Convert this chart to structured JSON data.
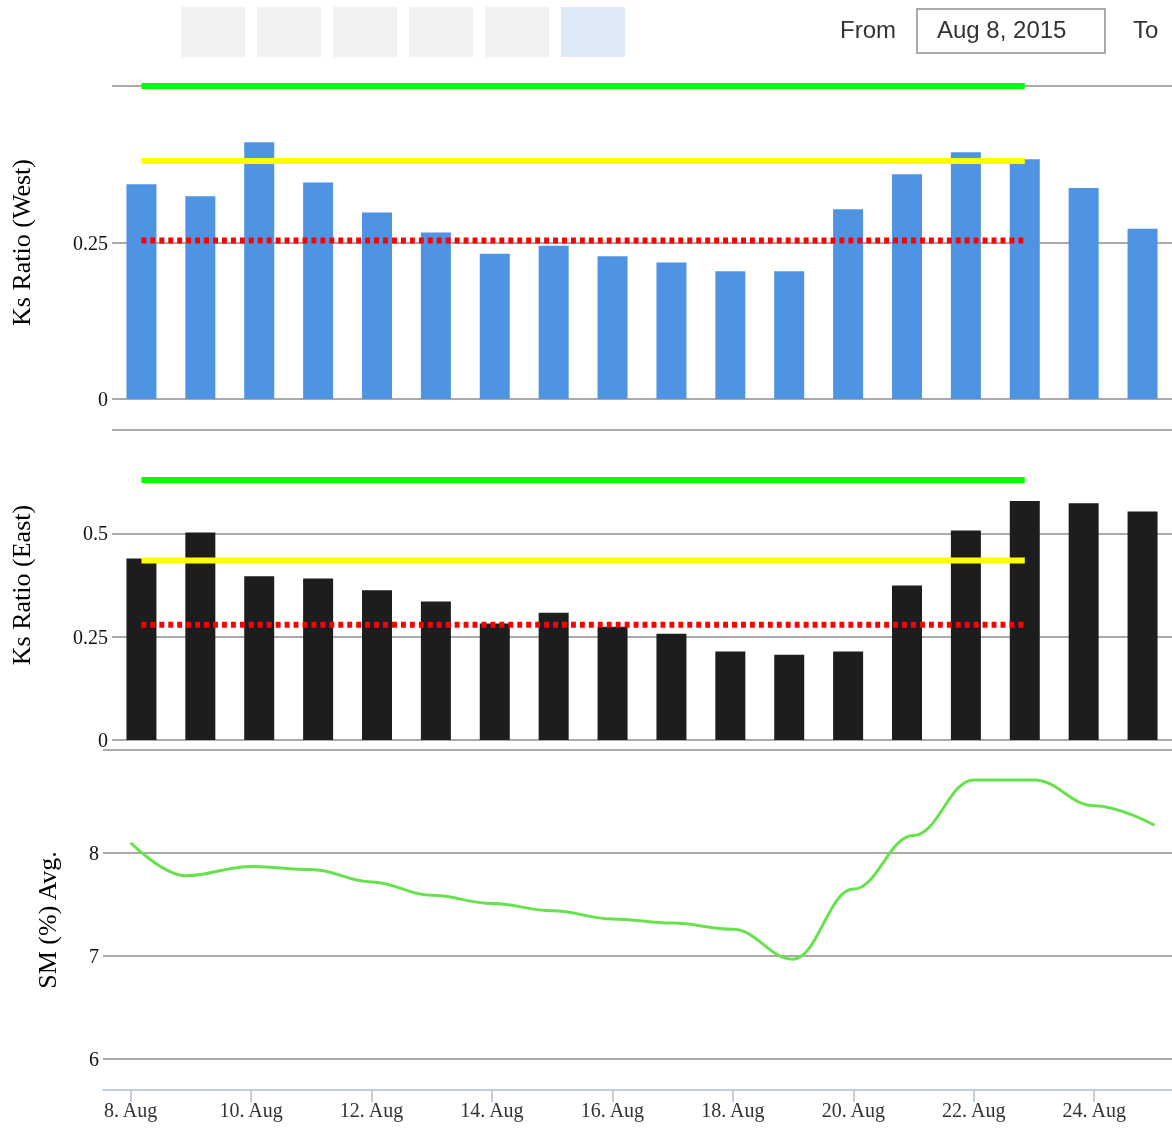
{
  "chart_data": [
    {
      "type": "other",
      "annotations": [
        "From",
        "Aug 8, 2015",
        "To"
      ]
    },
    {
      "type": "bar",
      "ylabel": "Ks Ratio (West)",
      "categories": [
        null,
        null,
        null,
        null,
        null,
        null,
        null,
        null,
        null,
        null,
        null,
        null,
        null,
        null,
        null,
        null,
        null,
        null
      ],
      "ylim": [
        0,
        0.5
      ],
      "yticks": [
        0,
        0.25,
        {
          "value": 0.5,
          "label": null
        }
      ],
      "grid": "y",
      "tick_labels": "y",
      "marker": "none",
      "series": [
        {
          "color": "#4e94e3",
          "values": [
            0.343,
            0.324,
            0.41,
            0.346,
            0.298,
            0.266,
            0.232,
            0.245,
            0.228,
            0.218,
            0.204,
            0.204,
            0.303,
            0.359,
            0.394,
            0.383,
            0.337,
            0.272
          ]
        },
        {
          "type": "line",
          "color": "#00ff00",
          "values": [
            0.5,
            0.5,
            0.5,
            0.5,
            0.5,
            0.5,
            0.5,
            0.5,
            0.5,
            0.5,
            0.5,
            0.5,
            0.5,
            0.5,
            0.5,
            0.5,
            null,
            null
          ],
          "line_style": "solid"
        },
        {
          "type": "line",
          "color": "#ffff00",
          "values": [
            0.38,
            0.38,
            0.38,
            0.38,
            0.38,
            0.38,
            0.38,
            0.38,
            0.38,
            0.38,
            0.38,
            0.38,
            0.38,
            0.38,
            0.38,
            0.38,
            null,
            null
          ],
          "line_style": "solid"
        },
        {
          "type": "line",
          "color": "#ff0000",
          "values": [
            0.253,
            0.253,
            0.253,
            0.253,
            0.253,
            0.253,
            0.253,
            0.253,
            0.253,
            0.253,
            0.253,
            0.253,
            0.253,
            0.253,
            0.253,
            0.253,
            null,
            null
          ],
          "line_style": "dotted"
        }
      ]
    },
    {
      "type": "bar",
      "ylabel": "Ks Ratio (East)",
      "categories": [
        null,
        null,
        null,
        null,
        null,
        null,
        null,
        null,
        null,
        null,
        null,
        null,
        null,
        null,
        null,
        null,
        null,
        null
      ],
      "ylim": [
        0,
        0.75
      ],
      "yticks": [
        0,
        0.25,
        0.5,
        {
          "value": 0.75,
          "label": null
        }
      ],
      "grid": "y",
      "tick_labels": "y",
      "marker": "none",
      "series": [
        {
          "color": "#1d1d1f",
          "values": [
            0.439,
            0.502,
            0.396,
            0.391,
            0.362,
            0.335,
            0.282,
            0.308,
            0.274,
            0.257,
            0.214,
            0.206,
            0.214,
            0.374,
            0.507,
            0.578,
            0.573,
            0.553
          ]
        },
        {
          "type": "line",
          "color": "#00ff00",
          "values": [
            0.629,
            0.629,
            0.629,
            0.629,
            0.629,
            0.629,
            0.629,
            0.629,
            0.629,
            0.629,
            0.629,
            0.629,
            0.629,
            0.629,
            0.629,
            0.629,
            null,
            null
          ],
          "line_style": "solid"
        },
        {
          "type": "line",
          "color": "#ffff00",
          "values": [
            0.434,
            0.434,
            0.434,
            0.434,
            0.434,
            0.434,
            0.434,
            0.434,
            0.434,
            0.434,
            0.434,
            0.434,
            0.434,
            0.434,
            0.434,
            0.434,
            null,
            null
          ],
          "line_style": "solid"
        },
        {
          "type": "line",
          "color": "#ff0000",
          "values": [
            0.279,
            0.279,
            0.279,
            0.279,
            0.279,
            0.279,
            0.279,
            0.279,
            0.279,
            0.279,
            0.279,
            0.279,
            0.279,
            0.279,
            0.279,
            0.279,
            null,
            null
          ],
          "line_style": "dotted"
        }
      ]
    },
    {
      "type": "line",
      "ylabel": "SM (%) Avg.",
      "x": [
        "2015-08-08",
        "2015-08-08T22:00",
        "2015-08-10",
        "2015-08-11",
        "2015-08-12",
        "2015-08-13",
        "2015-08-14",
        "2015-08-15",
        "2015-08-16",
        "2015-08-17",
        "2015-08-18",
        "2015-08-19",
        "2015-08-20",
        "2015-08-21",
        "2015-08-22",
        "2015-08-23",
        "2015-08-24",
        "2015-08-25"
      ],
      "xlim": [
        "2015-08-07T13:00",
        "2015-08-25T07:00"
      ],
      "xticks": [
        {
          "value": "2015-08-08",
          "label": "8. Aug"
        },
        {
          "value": "2015-08-10",
          "label": "10. Aug"
        },
        {
          "value": "2015-08-12",
          "label": "12. Aug"
        },
        {
          "value": "2015-08-14",
          "label": "14. Aug"
        },
        {
          "value": "2015-08-16",
          "label": "16. Aug"
        },
        {
          "value": "2015-08-18",
          "label": "18. Aug"
        },
        {
          "value": "2015-08-20",
          "label": "20. Aug"
        },
        {
          "value": "2015-08-22",
          "label": "22. Aug"
        },
        {
          "value": "2015-08-24",
          "label": "24. Aug"
        }
      ],
      "ylim": [
        5.7,
        9
      ],
      "yticks": [
        6,
        7,
        8,
        {
          "value": 9,
          "label": null
        }
      ],
      "grid": "y",
      "marker": "none",
      "line_style": "solid",
      "series": [
        {
          "color": "#66e34a",
          "values": [
            8.1,
            7.78,
            7.87,
            7.84,
            7.72,
            7.59,
            7.51,
            7.44,
            7.36,
            7.32,
            7.26,
            6.97,
            7.65,
            8.17,
            8.71,
            8.71,
            8.46,
            8.27
          ]
        }
      ]
    }
  ]
}
